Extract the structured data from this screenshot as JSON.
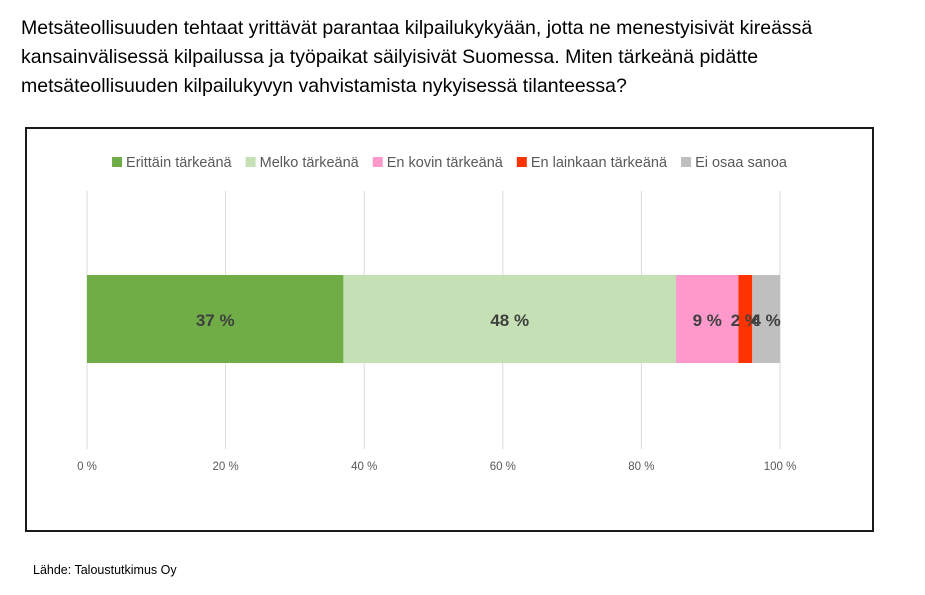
{
  "question": "Metsäteollisuuden tehtaat yrittävät parantaa kilpailukykyään, jotta ne menestyisivät kireässä kansainvälisessä kilpailussa ja työpaikat säilyisivät Suomessa. Miten tärkeänä pidätte metsäteollisuuden kilpailukyvyn vahvistamista nykyisessä tilanteessa?",
  "source": "Lähde: Taloustutkimus Oy",
  "chart_data": {
    "type": "bar",
    "orientation": "horizontal",
    "stacked": true,
    "categories": [
      ""
    ],
    "series": [
      {
        "name": "Erittäin tärkeänä",
        "values": [
          37
        ],
        "label": "37 %",
        "color": "#70ad47"
      },
      {
        "name": "Melko tärkeänä",
        "values": [
          48
        ],
        "label": "48 %",
        "color": "#c5e0b4"
      },
      {
        "name": "En kovin tärkeänä",
        "values": [
          9
        ],
        "label": "9 %",
        "color": "#ff99cc"
      },
      {
        "name": "En lainkaan tärkeänä",
        "values": [
          2
        ],
        "label": "2 %",
        "color": "#ff3300"
      },
      {
        "name": "Ei osaa sanoa",
        "values": [
          4
        ],
        "label": "4 %",
        "color": "#bfbfbf"
      }
    ],
    "xlim": [
      0,
      100
    ],
    "xticks": [
      0,
      20,
      40,
      60,
      80,
      100
    ],
    "xtick_labels": [
      "0 %",
      "20 %",
      "40 %",
      "60 %",
      "80 %",
      "100 %"
    ],
    "grid": true,
    "legend_position": "top",
    "label_color": "#404040",
    "grid_color": "#d9d9d9"
  }
}
